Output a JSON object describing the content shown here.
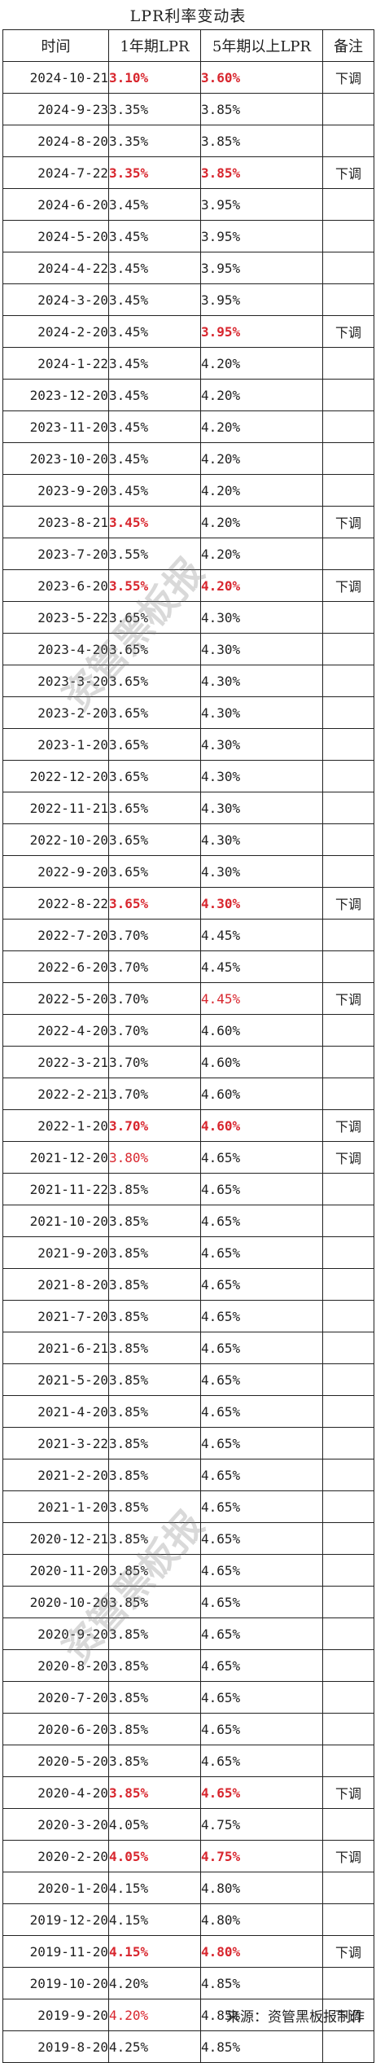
{
  "title": "LPR利率变动表",
  "headers": [
    "时间",
    "1年期LPR",
    "5年期以上LPR",
    "备注"
  ],
  "rows": [
    {
      "date": "2024-10-21",
      "one": "3.10%",
      "five": "3.60%",
      "note": "下调",
      "one_hl": true,
      "five_hl": true
    },
    {
      "date": "2024-9-23",
      "one": "3.35%",
      "five": "3.85%",
      "note": ""
    },
    {
      "date": "2024-8-20",
      "one": "3.35%",
      "five": "3.85%",
      "note": ""
    },
    {
      "date": "2024-7-22",
      "one": "3.35%",
      "five": "3.85%",
      "note": "下调",
      "one_hl": true,
      "five_hl": true
    },
    {
      "date": "2024-6-20",
      "one": "3.45%",
      "five": "3.95%",
      "note": ""
    },
    {
      "date": "2024-5-20",
      "one": "3.45%",
      "five": "3.95%",
      "note": ""
    },
    {
      "date": "2024-4-22",
      "one": "3.45%",
      "five": "3.95%",
      "note": ""
    },
    {
      "date": "2024-3-20",
      "one": "3.45%",
      "five": "3.95%",
      "note": ""
    },
    {
      "date": "2024-2-20",
      "one": "3.45%",
      "five": "3.95%",
      "note": "下调",
      "five_hl": true
    },
    {
      "date": "2024-1-22",
      "one": "3.45%",
      "five": "4.20%",
      "note": ""
    },
    {
      "date": "2023-12-20",
      "one": "3.45%",
      "five": "4.20%",
      "note": ""
    },
    {
      "date": "2023-11-20",
      "one": "3.45%",
      "five": "4.20%",
      "note": ""
    },
    {
      "date": "2023-10-20",
      "one": "3.45%",
      "five": "4.20%",
      "note": ""
    },
    {
      "date": "2023-9-20",
      "one": "3.45%",
      "five": "4.20%",
      "note": ""
    },
    {
      "date": "2023-8-21",
      "one": "3.45%",
      "five": "4.20%",
      "note": "下调",
      "one_hl": true
    },
    {
      "date": "2023-7-20",
      "one": "3.55%",
      "five": "4.20%",
      "note": ""
    },
    {
      "date": "2023-6-20",
      "one": "3.55%",
      "five": "4.20%",
      "note": "下调",
      "one_hl": true,
      "five_hl": true
    },
    {
      "date": "2023-5-22",
      "one": "3.65%",
      "five": "4.30%",
      "note": ""
    },
    {
      "date": "2023-4-20",
      "one": "3.65%",
      "five": "4.30%",
      "note": ""
    },
    {
      "date": "2023-3-20",
      "one": "3.65%",
      "five": "4.30%",
      "note": ""
    },
    {
      "date": "2023-2-20",
      "one": "3.65%",
      "five": "4.30%",
      "note": ""
    },
    {
      "date": "2023-1-20",
      "one": "3.65%",
      "five": "4.30%",
      "note": ""
    },
    {
      "date": "2022-12-20",
      "one": "3.65%",
      "five": "4.30%",
      "note": ""
    },
    {
      "date": "2022-11-21",
      "one": "3.65%",
      "five": "4.30%",
      "note": ""
    },
    {
      "date": "2022-10-20",
      "one": "3.65%",
      "five": "4.30%",
      "note": ""
    },
    {
      "date": "2022-9-20",
      "one": "3.65%",
      "five": "4.30%",
      "note": ""
    },
    {
      "date": "2022-8-22",
      "one": "3.65%",
      "five": "4.30%",
      "note": "下调",
      "one_hl": true,
      "five_hl": true
    },
    {
      "date": "2022-7-20",
      "one": "3.70%",
      "five": "4.45%",
      "note": ""
    },
    {
      "date": "2022-6-20",
      "one": "3.70%",
      "five": "4.45%",
      "note": ""
    },
    {
      "date": "2022-5-20",
      "one": "3.70%",
      "five": "4.45%",
      "note": "下调",
      "five_light": true
    },
    {
      "date": "2022-4-20",
      "one": "3.70%",
      "five": "4.60%",
      "note": ""
    },
    {
      "date": "2022-3-21",
      "one": "3.70%",
      "five": "4.60%",
      "note": ""
    },
    {
      "date": "2022-2-21",
      "one": "3.70%",
      "five": "4.60%",
      "note": ""
    },
    {
      "date": "2022-1-20",
      "one": "3.70%",
      "five": "4.60%",
      "note": "下调",
      "one_hl": true,
      "five_hl": true
    },
    {
      "date": "2021-12-20",
      "one": "3.80%",
      "five": "4.65%",
      "note": "下调",
      "one_light": true
    },
    {
      "date": "2021-11-22",
      "one": "3.85%",
      "five": "4.65%",
      "note": ""
    },
    {
      "date": "2021-10-20",
      "one": "3.85%",
      "five": "4.65%",
      "note": ""
    },
    {
      "date": "2021-9-20",
      "one": "3.85%",
      "five": "4.65%",
      "note": ""
    },
    {
      "date": "2021-8-20",
      "one": "3.85%",
      "five": "4.65%",
      "note": ""
    },
    {
      "date": "2021-7-20",
      "one": "3.85%",
      "five": "4.65%",
      "note": ""
    },
    {
      "date": "2021-6-21",
      "one": "3.85%",
      "five": "4.65%",
      "note": ""
    },
    {
      "date": "2021-5-20",
      "one": "3.85%",
      "five": "4.65%",
      "note": ""
    },
    {
      "date": "2021-4-20",
      "one": "3.85%",
      "five": "4.65%",
      "note": ""
    },
    {
      "date": "2021-3-22",
      "one": "3.85%",
      "five": "4.65%",
      "note": ""
    },
    {
      "date": "2021-2-20",
      "one": "3.85%",
      "five": "4.65%",
      "note": ""
    },
    {
      "date": "2021-1-20",
      "one": "3.85%",
      "five": "4.65%",
      "note": ""
    },
    {
      "date": "2020-12-21",
      "one": "3.85%",
      "five": "4.65%",
      "note": ""
    },
    {
      "date": "2020-11-20",
      "one": "3.85%",
      "five": "4.65%",
      "note": ""
    },
    {
      "date": "2020-10-20",
      "one": "3.85%",
      "five": "4.65%",
      "note": ""
    },
    {
      "date": "2020-9-20",
      "one": "3.85%",
      "five": "4.65%",
      "note": ""
    },
    {
      "date": "2020-8-20",
      "one": "3.85%",
      "five": "4.65%",
      "note": ""
    },
    {
      "date": "2020-7-20",
      "one": "3.85%",
      "five": "4.65%",
      "note": ""
    },
    {
      "date": "2020-6-20",
      "one": "3.85%",
      "five": "4.65%",
      "note": ""
    },
    {
      "date": "2020-5-20",
      "one": "3.85%",
      "five": "4.65%",
      "note": ""
    },
    {
      "date": "2020-4-20",
      "one": "3.85%",
      "five": "4.65%",
      "note": "下调",
      "one_hl": true,
      "five_hl": true
    },
    {
      "date": "2020-3-20",
      "one": "4.05%",
      "five": "4.75%",
      "note": ""
    },
    {
      "date": "2020-2-20",
      "one": "4.05%",
      "five": "4.75%",
      "note": "下调",
      "one_hl": true,
      "five_hl": true
    },
    {
      "date": "2020-1-20",
      "one": "4.15%",
      "five": "4.80%",
      "note": ""
    },
    {
      "date": "2019-12-20",
      "one": "4.15%",
      "five": "4.80%",
      "note": ""
    },
    {
      "date": "2019-11-20",
      "one": "4.15%",
      "five": "4.80%",
      "note": "下调",
      "one_hl": true,
      "five_hl": true
    },
    {
      "date": "2019-10-20",
      "one": "4.20%",
      "five": "4.85%",
      "note": ""
    },
    {
      "date": "2019-9-20",
      "one": "4.20%",
      "five": "4.85%",
      "note": "下调",
      "one_light": true
    },
    {
      "date": "2019-8-20",
      "one": "4.25%",
      "five": "4.85%",
      "note": ""
    }
  ],
  "footer": "来源：资管黑板报制作",
  "watermark": "资管黑板报",
  "colors": {
    "highlight": "#d8262e",
    "border": "#222222"
  }
}
